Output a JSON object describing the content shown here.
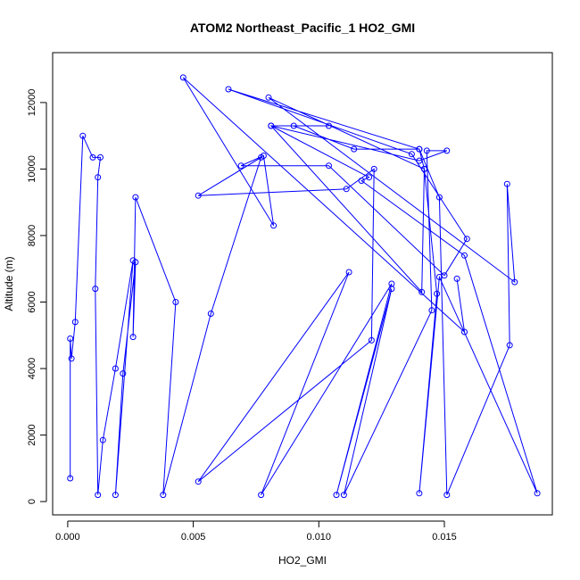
{
  "chart_data": {
    "type": "line",
    "title": "ATOM2 Northeast_Pacific_1 HO2_GMI",
    "xlabel": "HO2_GMI",
    "ylabel": "Altitude (m)",
    "xlim": [
      -0.0006,
      0.0193
    ],
    "ylim": [
      -400,
      13500
    ],
    "x_ticks": [
      0.0,
      0.005,
      0.01,
      0.015
    ],
    "x_tick_labels": [
      "0.000",
      "0.005",
      "0.010",
      "0.015"
    ],
    "y_ticks": [
      0,
      2000,
      4000,
      6000,
      8000,
      10000,
      12000
    ],
    "y_tick_labels": [
      "0",
      "2000",
      "4000",
      "6000",
      "8000",
      "10000",
      "12000"
    ],
    "grid": false,
    "legend": "none",
    "line_color": "#0000ff",
    "marker": "open-circle",
    "series": [
      {
        "points": [
          [
            0.0001,
            700
          ],
          [
            0.0001,
            4900
          ],
          [
            0.00015,
            4300
          ],
          [
            0.0003,
            5400
          ],
          [
            0.0006,
            11000
          ],
          [
            0.001,
            10350
          ],
          [
            0.0013,
            10350
          ],
          [
            0.0012,
            9750
          ],
          [
            0.0011,
            6400
          ],
          [
            0.0012,
            200
          ],
          [
            0.0014,
            1850
          ],
          [
            0.0019,
            4000
          ],
          [
            0.0026,
            7250
          ],
          [
            0.0019,
            200
          ],
          [
            0.0022,
            3850
          ],
          [
            0.0027,
            7200
          ],
          [
            0.0026,
            4950
          ],
          [
            0.0027,
            9150
          ],
          [
            0.0043,
            6000
          ],
          [
            0.0038,
            200
          ],
          [
            0.0057,
            5650
          ],
          [
            0.0077,
            10350
          ],
          [
            0.0052,
            9200
          ],
          [
            0.0111,
            9400
          ],
          [
            0.0122,
            10000
          ],
          [
            0.0121,
            4850
          ],
          [
            0.0052,
            600
          ],
          [
            0.0112,
            6900
          ],
          [
            0.0077,
            200
          ],
          [
            0.0129,
            6550
          ],
          [
            0.0107,
            200
          ],
          [
            0.0129,
            6400
          ],
          [
            0.011,
            200
          ],
          [
            0.0145,
            5750
          ],
          [
            0.0143,
            10550
          ],
          [
            0.0151,
            10550
          ],
          [
            0.014,
            10250
          ],
          [
            0.0081,
            11300
          ],
          [
            0.012,
            9750
          ],
          [
            0.0117,
            9650
          ],
          [
            0.0158,
            7400
          ],
          [
            0.0187,
            250
          ],
          [
            0.0148,
            6750
          ],
          [
            0.014,
            250
          ],
          [
            0.0147,
            6250
          ],
          [
            0.0142,
            10000
          ],
          [
            0.014,
            10600
          ],
          [
            0.0114,
            10600
          ],
          [
            0.009,
            11300
          ],
          [
            0.0104,
            11300
          ],
          [
            0.0081,
            11300
          ],
          [
            0.0141,
            6300
          ],
          [
            0.0142,
            10000
          ],
          [
            0.008,
            12150
          ],
          [
            0.0178,
            6600
          ],
          [
            0.0175,
            9550
          ],
          [
            0.0176,
            4700
          ],
          [
            0.0151,
            200
          ],
          [
            0.0148,
            9150
          ],
          [
            0.014,
            10600
          ],
          [
            0.0064,
            12400
          ],
          [
            0.0137,
            10450
          ],
          [
            0.0159,
            7900
          ],
          [
            0.015,
            6800
          ],
          [
            0.0104,
            10100
          ],
          [
            0.0069,
            10100
          ],
          [
            0.0078,
            10400
          ],
          [
            0.0082,
            8300
          ],
          [
            0.0046,
            12750
          ],
          [
            0.0158,
            5100
          ],
          [
            0.0155,
            6700
          ]
        ]
      }
    ]
  }
}
